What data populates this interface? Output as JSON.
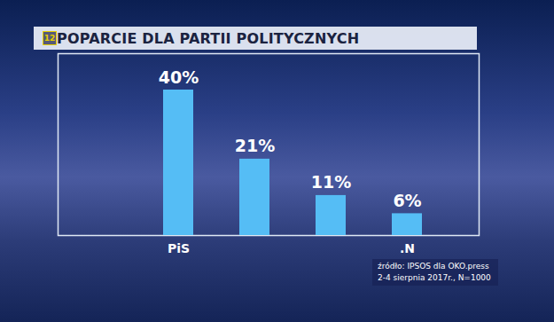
{
  "chart_data": {
    "type": "bar",
    "badge": "12",
    "title": "POPARCIE DLA PARTII POLITYCZNYCH",
    "categories": [
      "PiS",
      null,
      null,
      ".N"
    ],
    "values": [
      40,
      21,
      11,
      6
    ],
    "value_labels": [
      "40%",
      "21%",
      "11%",
      "6%"
    ],
    "color": "#55bdf5",
    "ylim": [
      0,
      50
    ],
    "data_labels": true,
    "tick_labels": "x",
    "grid": false,
    "source": [
      "źródło: IPSOS dla OKO.press",
      "2-4 sierpnia 2017r., N=1000"
    ]
  }
}
